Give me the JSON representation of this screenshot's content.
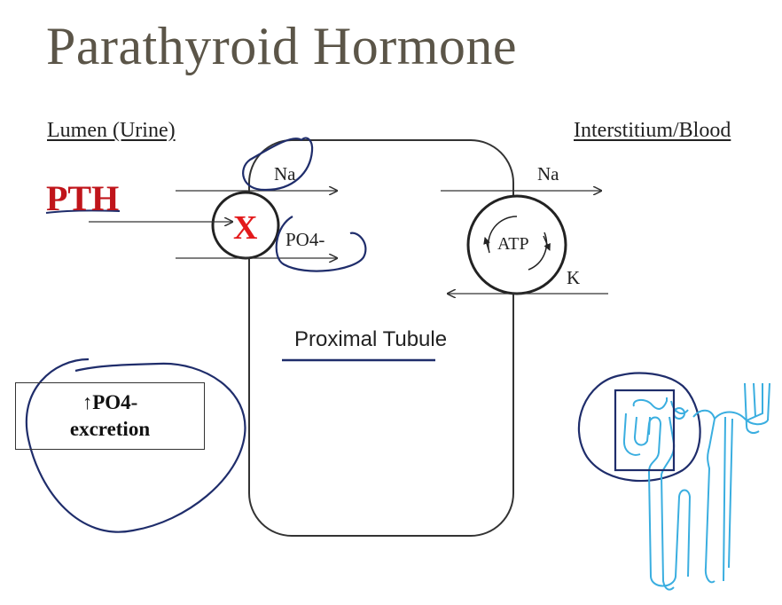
{
  "title": "Parathyroid Hormone",
  "lumen_label": "Lumen (Urine)",
  "interstitium_label": "Interstitium/Blood",
  "hormone_label": "PTH",
  "inhibition_mark": "X",
  "left_transporter": {
    "na_label": "Na",
    "po4_label": "PO4-"
  },
  "right_pump": {
    "na_label": "Na",
    "atp_label": "ATP",
    "k_label": "K"
  },
  "cell_label": "Proximal Tubule",
  "effect_box": {
    "line1": "↑PO4-",
    "line2": "excretion"
  },
  "colors": {
    "title": "#5b5548",
    "pth": "#c0151b",
    "x_mark": "#e31a1c",
    "annotation_ink": "#1f2d6b",
    "nephron": "#3aaee0",
    "nephron_box": "#1f2d6b"
  },
  "icons": {
    "nephron": "nephron-icon",
    "atp_cycle": "circular-arrows-icon"
  }
}
